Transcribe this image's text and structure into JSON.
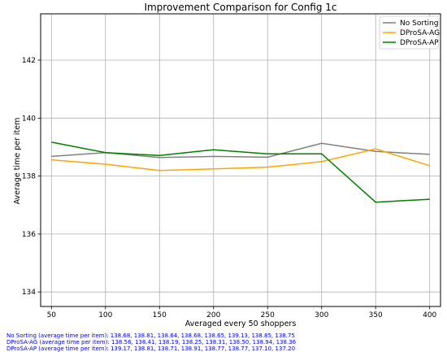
{
  "chart_data": {
    "type": "line",
    "title": "Improvement Comparison for Config 1c",
    "xlabel": "Averaged every 50 shoppers",
    "ylabel": "Average time per item",
    "x": [
      50,
      100,
      150,
      200,
      250,
      300,
      350,
      400
    ],
    "xlim": [
      40,
      410
    ],
    "ylim": [
      133.5,
      143.6
    ],
    "yticks": [
      134,
      136,
      138,
      140,
      142
    ],
    "grid": true,
    "legend_position": "top-right",
    "series": [
      {
        "name": "No Sorting",
        "color": "#808080",
        "values": [
          138.68,
          138.81,
          138.64,
          138.68,
          138.65,
          139.13,
          138.85,
          138.75
        ]
      },
      {
        "name": "DProSA-AG",
        "color": "#ffa500",
        "values": [
          138.56,
          138.41,
          138.19,
          138.25,
          138.31,
          138.5,
          138.94,
          138.36
        ]
      },
      {
        "name": "DProSA-AP",
        "color": "#008000",
        "values": [
          139.17,
          138.81,
          138.71,
          138.91,
          138.77,
          138.77,
          137.1,
          137.2
        ]
      }
    ]
  },
  "footer": {
    "line1": "No Sorting (average time per item): 138.68, 138.81, 138.64, 138.68, 138.65, 139.13, 138.85, 138.75",
    "line2": "DProSA-AG (average time per item): 138.56, 138.41, 138.19, 138.25, 138.31, 138.50, 138.94, 138.36",
    "line3": "DProSA-AP (average time per item): 139.17, 138.81, 138.71, 138.91, 138.77, 138.77, 137.10, 137.20"
  }
}
